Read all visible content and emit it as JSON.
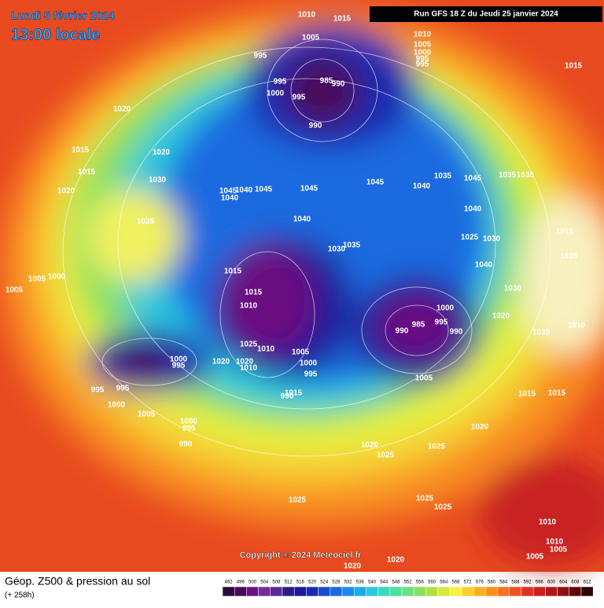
{
  "header": {
    "date": "Lundi 5 février 2024",
    "time": "13:00 locale",
    "run": "Run GFS 18 Z du Jeudi 25 janvier 2024"
  },
  "copyright": "Copyright © 2024 Meteociel.fr",
  "footer": {
    "title": "Géop. Z500 & pression au sol",
    "lead": "(+ 258h)"
  },
  "isobar_labels": [
    1010,
    1015,
    1005,
    1010,
    1005,
    1000,
    995,
    995,
    1015,
    995,
    995,
    1000,
    995,
    985,
    990,
    990,
    1020,
    1015,
    1015,
    1020,
    1030,
    1020,
    1035,
    1045,
    1040,
    1045,
    1040,
    1045,
    1045,
    1040,
    1035,
    1045,
    1035,
    1035,
    1040,
    1040,
    1025,
    1030,
    1015,
    1035,
    1030,
    1035,
    1040,
    1015,
    1015,
    1005,
    1000,
    1005,
    1010,
    1000,
    985,
    990,
    995,
    990,
    1020,
    1030,
    1010,
    1030,
    1025,
    1010,
    1020,
    1020,
    1010,
    1005,
    1000,
    995,
    1005,
    1000,
    995,
    995,
    995,
    1000,
    1005,
    1000,
    995,
    990,
    990,
    1015,
    1015,
    1015,
    1020,
    1020,
    1025,
    1025,
    1025,
    1025,
    1025,
    1010,
    1010,
    1005,
    1005,
    1020,
    1020
  ],
  "scale": {
    "values": [
      492,
      496,
      500,
      504,
      508,
      512,
      516,
      520,
      524,
      528,
      532,
      536,
      540,
      544,
      548,
      552,
      556,
      560,
      564,
      568,
      572,
      576,
      580,
      584,
      588,
      592,
      596,
      600,
      604,
      608,
      612
    ],
    "colors": [
      "#2a0a3a",
      "#4a0a5a",
      "#6a1080",
      "#7a2a9a",
      "#5a2a9a",
      "#2a1a8a",
      "#1a1a9a",
      "#1a2ab0",
      "#1a4ad0",
      "#1a6ae0",
      "#1a8af0",
      "#1aaaf0",
      "#2ac8e0",
      "#3ad8c0",
      "#4ae0a0",
      "#6ae080",
      "#8ae060",
      "#b0e040",
      "#d8e840",
      "#f8f040",
      "#f8d030",
      "#f8b020",
      "#f89020",
      "#f87020",
      "#f05020",
      "#e03020",
      "#c82020",
      "#b01818",
      "#901010",
      "#600808",
      "#300404"
    ]
  }
}
